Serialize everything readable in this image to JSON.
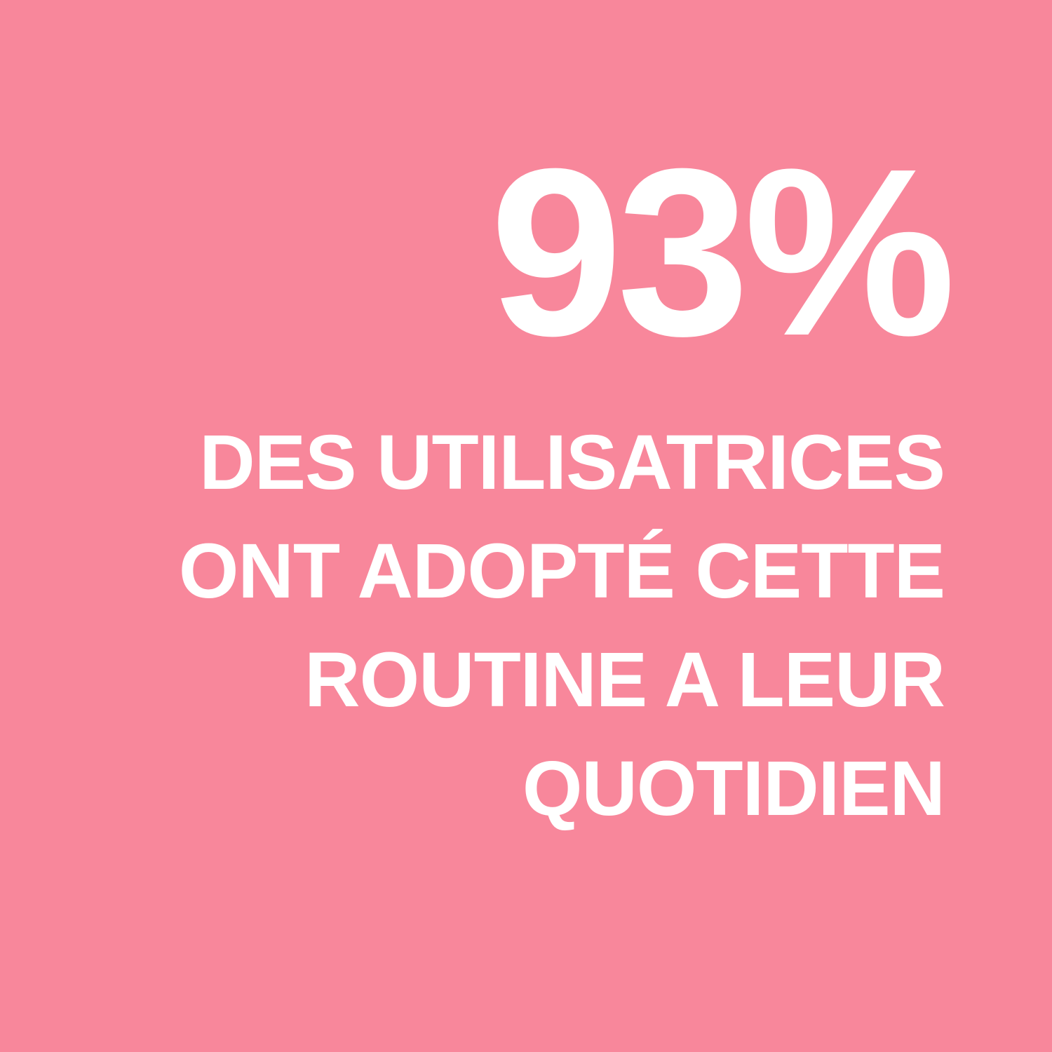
{
  "colors": {
    "background": "#F8879B",
    "text": "#FFFFFF"
  },
  "stat": {
    "value": "93%",
    "description_lines": [
      "DES UTILISATRICES",
      "ONT ADOPTÉ CETTE",
      "ROUTINE A LEUR",
      "QUOTIDIEN"
    ]
  }
}
